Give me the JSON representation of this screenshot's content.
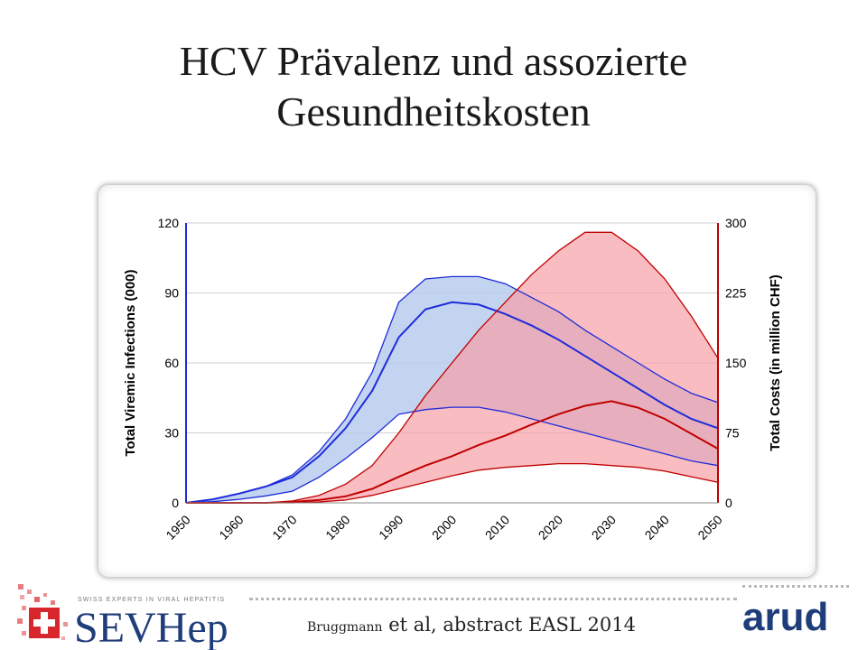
{
  "slide": {
    "title_line1": "HCV Prävalenz und assozierte",
    "title_line2": "Gesundheitskosten",
    "citation_author": "Bruggmann",
    "citation_rest": " et al, abstract EASL 2014"
  },
  "logos": {
    "left_tagline": "SWISS EXPERTS IN VIRAL HEPATITIS",
    "left_name": "SEVHep",
    "right_name": "arud"
  },
  "colors": {
    "viremic": "#1f2bd9",
    "viremic_fill": "#b9cdef",
    "costs": "#c00000",
    "costs_fill": "#f6a0a6",
    "overlap_line": "#7a49d6"
  },
  "chart_data": {
    "type": "area",
    "x": [
      1950,
      1955,
      1960,
      1965,
      1970,
      1975,
      1980,
      1985,
      1990,
      1995,
      2000,
      2005,
      2010,
      2015,
      2020,
      2025,
      2030,
      2035,
      2040,
      2045,
      2050
    ],
    "x_ticks": [
      "1950",
      "1960",
      "1970",
      "1980",
      "1990",
      "2000",
      "2010",
      "2020",
      "2030",
      "2040",
      "2050"
    ],
    "xlim": [
      1950,
      2050
    ],
    "y_left_label": "Total Viremic Infections (000)",
    "y_left_ticks": [
      "0",
      "30",
      "60",
      "90",
      "120"
    ],
    "y_left_lim": [
      0,
      120
    ],
    "y_right_label": "Total Costs (in million CHF)",
    "y_right_ticks": [
      "0",
      "75",
      "150",
      "225",
      "300"
    ],
    "y_right_lim": [
      0,
      300
    ],
    "grid": true,
    "series": [
      {
        "axis": "left",
        "role": "upper",
        "values": [
          0,
          1.5,
          4,
          7,
          12,
          22,
          36,
          56,
          86,
          96,
          97,
          97,
          94,
          88,
          82,
          74,
          67,
          60,
          53,
          47,
          43
        ]
      },
      {
        "axis": "left",
        "role": "middle",
        "values": [
          0,
          1.5,
          4,
          7,
          11,
          20,
          32,
          48,
          71,
          83,
          86,
          85,
          81,
          76,
          70,
          63,
          56,
          49,
          42,
          36,
          32
        ]
      },
      {
        "axis": "left",
        "role": "lower",
        "values": [
          0,
          0.5,
          1.5,
          3,
          5,
          11,
          19,
          28,
          38,
          40,
          41,
          41,
          39,
          36,
          33,
          30,
          27,
          24,
          21,
          18,
          16
        ]
      },
      {
        "axis": "right",
        "role": "upper",
        "values": [
          0,
          0,
          0,
          0,
          2,
          8,
          20,
          40,
          75,
          115,
          150,
          185,
          215,
          245,
          270,
          290,
          290,
          270,
          240,
          200,
          155
        ]
      },
      {
        "axis": "right",
        "role": "middle",
        "values": [
          0,
          0,
          0,
          0,
          1,
          3,
          7,
          15,
          28,
          40,
          50,
          62,
          72,
          84,
          95,
          104,
          109,
          102,
          90,
          74,
          58
        ]
      },
      {
        "axis": "right",
        "role": "lower",
        "values": [
          0,
          0,
          0,
          0,
          0,
          1,
          3,
          8,
          15,
          22,
          29,
          35,
          38,
          40,
          42,
          42,
          40,
          38,
          34,
          28,
          22
        ]
      }
    ]
  }
}
